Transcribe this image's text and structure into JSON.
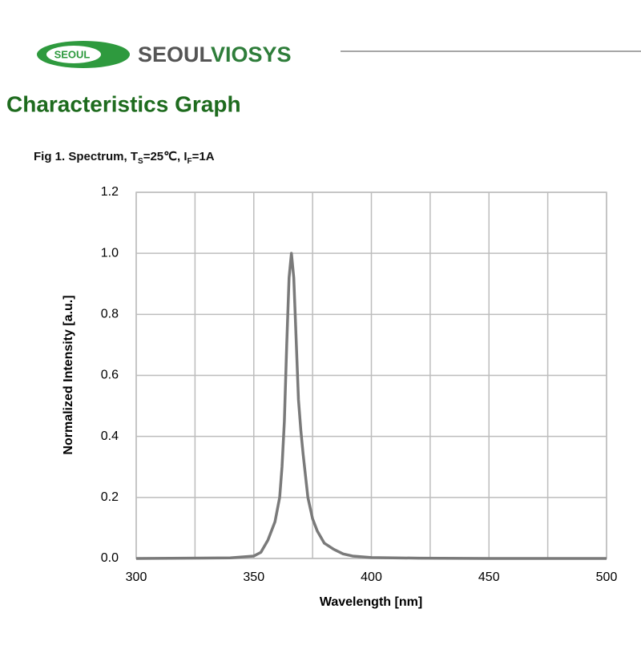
{
  "header": {
    "logo": "SEOUL",
    "brand_a": "SEOUL",
    "brand_b": "VIOSYS",
    "heading": "Characteristics Graph"
  },
  "chart_data": {
    "type": "line",
    "title_parts": [
      {
        "text": "Fig 1. Spectrum, T"
      },
      {
        "text": "S",
        "sub": true
      },
      {
        "text": "=25℃, I"
      },
      {
        "text": "F",
        "sub": true
      },
      {
        "text": "=1A"
      }
    ],
    "x_label": "Wavelength [nm]",
    "y_label": "Normalized Intensity [a.u.]",
    "x": [
      300,
      340,
      350,
      353,
      356,
      359,
      361,
      362,
      363,
      364,
      365,
      366,
      367,
      368,
      369,
      370,
      371,
      372,
      373,
      375,
      377,
      380,
      384,
      388,
      392,
      400,
      420,
      450,
      500
    ],
    "series": [
      {
        "color": "#7a7a7a",
        "values": [
          0,
          0.002,
          0.008,
          0.02,
          0.06,
          0.12,
          0.2,
          0.3,
          0.45,
          0.7,
          0.92,
          1.0,
          0.92,
          0.72,
          0.52,
          0.42,
          0.34,
          0.27,
          0.2,
          0.13,
          0.09,
          0.05,
          0.03,
          0.015,
          0.008,
          0.003,
          0.001,
          0,
          0
        ]
      }
    ],
    "xlim": [
      300,
      500
    ],
    "xticks": [
      300,
      350,
      400,
      450,
      500
    ],
    "xgrid": [
      300,
      325,
      350,
      375,
      400,
      425,
      450,
      475,
      500
    ],
    "ylim": [
      0,
      1.2
    ],
    "yticks": [
      {
        "value": 0,
        "label": "0.0"
      },
      0.2,
      0.4,
      0.6,
      0.8,
      {
        "value": 1,
        "label": "1.0"
      },
      1.2
    ],
    "grid": true
  }
}
